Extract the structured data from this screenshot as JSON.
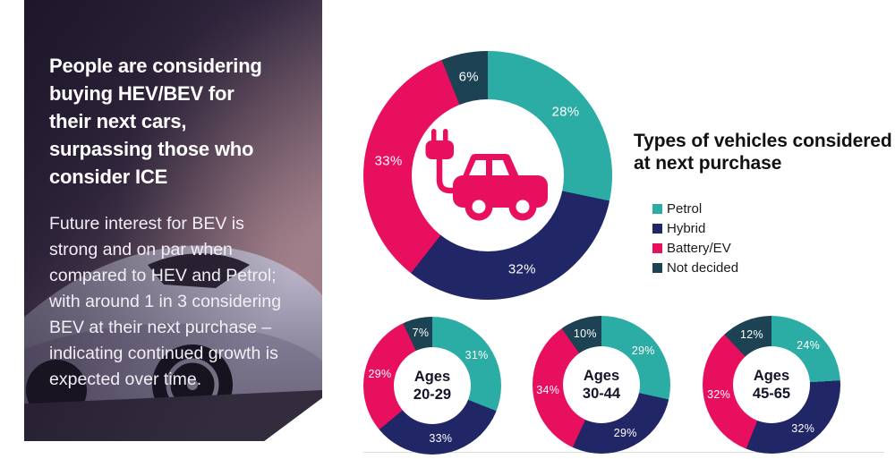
{
  "left_panel": {
    "title": "People are considering\nbuying HEV/BEV for\ntheir next cars,\nsurpassing those who\nconsider ICE",
    "body": "Future interest for BEV is\nstrong and on par when\ncompared to HEV and Petrol;\nwith around 1 in 3 considering\nBEV at their next purchase –\nindicating continued growth is\nexpected over time."
  },
  "chart_section": {
    "title": "Types of vehicles considered\nat next purchase",
    "legend": [
      {
        "label": "Petrol",
        "color": "#2BACA4"
      },
      {
        "label": "Hybrid",
        "color": "#212766"
      },
      {
        "label": "Battery/EV",
        "color": "#E90F5F"
      },
      {
        "label": "Not decided",
        "color": "#1C4253"
      }
    ]
  },
  "chart_data": [
    {
      "type": "pie",
      "variant": "donut",
      "title": "Types of vehicles considered at next purchase",
      "labels": [
        "Petrol",
        "Hybrid",
        "Battery/EV",
        "Not decided"
      ],
      "values": [
        28,
        32,
        33,
        6
      ],
      "unit": "%",
      "start_angle_deg": 0,
      "direction": "clockwise",
      "center_icon": "ev-car-icon",
      "legend_position": "right"
    },
    {
      "type": "pie",
      "variant": "donut",
      "center_label": "Ages\n20-29",
      "labels": [
        "Petrol",
        "Hybrid",
        "Battery/EV",
        "Not decided"
      ],
      "values": [
        31,
        33,
        29,
        7
      ],
      "unit": "%",
      "start_angle_deg": 0,
      "direction": "clockwise"
    },
    {
      "type": "pie",
      "variant": "donut",
      "center_label": "Ages\n30-44",
      "labels": [
        "Petrol",
        "Hybrid",
        "Battery/EV",
        "Not decided"
      ],
      "values": [
        29,
        29,
        34,
        10
      ],
      "unit": "%",
      "start_angle_deg": 0,
      "direction": "clockwise"
    },
    {
      "type": "pie",
      "variant": "donut",
      "center_label": "Ages\n45-65",
      "labels": [
        "Petrol",
        "Hybrid",
        "Battery/EV",
        "Not decided"
      ],
      "values": [
        24,
        32,
        32,
        12
      ],
      "unit": "%",
      "start_angle_deg": 0,
      "direction": "clockwise"
    }
  ],
  "colors": {
    "petrol": "#2BACA4",
    "hybrid": "#212766",
    "battery_ev": "#E90F5F",
    "not_decided": "#1C4253",
    "label_text": "#FFFFFF",
    "baseline": "#DCDCDC"
  }
}
